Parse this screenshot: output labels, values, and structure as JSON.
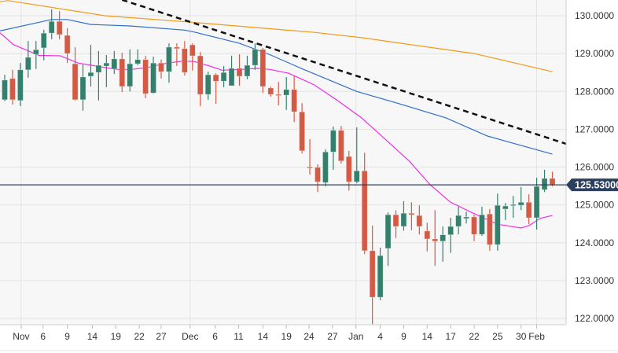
{
  "chart_data": {
    "type": "candlestick",
    "title": "",
    "ylim": [
      121.8,
      130.45
    ],
    "y_ticks": [
      "130.0000",
      "129.0000",
      "128.0000",
      "127.0000",
      "126.0000",
      "125.0000",
      "124.0000",
      "123.0000",
      "122.0000"
    ],
    "y_tick_values": [
      130,
      129,
      128,
      127,
      126,
      125,
      124,
      123,
      122
    ],
    "x_ticks": [
      {
        "label": "Nov",
        "index": 2.1
      },
      {
        "label": "6",
        "index": 4.9
      },
      {
        "label": "9",
        "index": 8
      },
      {
        "label": "14",
        "index": 11.2
      },
      {
        "label": "19",
        "index": 14.2
      },
      {
        "label": "22",
        "index": 17.2
      },
      {
        "label": "27",
        "index": 20
      },
      {
        "label": "Dec",
        "index": 23.7
      },
      {
        "label": "6",
        "index": 26.9
      },
      {
        "label": "11",
        "index": 29.9
      },
      {
        "label": "14",
        "index": 33
      },
      {
        "label": "19",
        "index": 36
      },
      {
        "label": "24",
        "index": 38.9
      },
      {
        "label": "27",
        "index": 41.9
      },
      {
        "label": "Jan",
        "index": 44.9
      },
      {
        "label": "4",
        "index": 48
      },
      {
        "label": "9",
        "index": 51
      },
      {
        "label": "14",
        "index": 54
      },
      {
        "label": "17",
        "index": 57
      },
      {
        "label": "22",
        "index": 60
      },
      {
        "label": "25",
        "index": 63
      },
      {
        "label": "30",
        "index": 66
      },
      {
        "label": "Feb",
        "index": 68
      }
    ],
    "month_gridlines": [
      2.1,
      23.7,
      44.9,
      68
    ],
    "current_price": {
      "value": 125.53,
      "label": "125.53000"
    },
    "colors": {
      "up": "#34806d",
      "down": "#d35b46",
      "ma_fast": "#ee2ee8",
      "ma_mid": "#2f6fc9",
      "ma_slow": "#f39a16",
      "trendline": "#111111",
      "price_box": "#2b3f5e",
      "grid": "#e3e3e3",
      "plot_bg": "#f7f7f7"
    },
    "candles": [
      [
        127.78,
        128.44,
        127.74,
        128.3
      ],
      [
        128.34,
        128.57,
        127.65,
        127.78
      ],
      [
        127.76,
        128.75,
        127.61,
        128.57
      ],
      [
        128.57,
        129.33,
        128.36,
        128.9
      ],
      [
        128.98,
        129.33,
        128.59,
        129.1
      ],
      [
        129.15,
        129.63,
        128.82,
        129.54
      ],
      [
        129.54,
        130.17,
        129.38,
        129.85
      ],
      [
        129.85,
        130.12,
        129.38,
        129.5
      ],
      [
        129.48,
        129.67,
        128.75,
        129.0
      ],
      [
        128.73,
        129.17,
        127.76,
        127.78
      ],
      [
        127.78,
        128.71,
        127.49,
        128.38
      ],
      [
        128.4,
        129.23,
        128.13,
        128.5
      ],
      [
        128.5,
        129.07,
        127.76,
        128.69
      ],
      [
        128.67,
        128.96,
        128.11,
        128.75
      ],
      [
        128.59,
        129.07,
        128.46,
        128.86
      ],
      [
        128.86,
        129.02,
        127.98,
        128.13
      ],
      [
        128.13,
        129.11,
        128.0,
        128.73
      ],
      [
        128.73,
        129.11,
        128.69,
        128.84
      ],
      [
        128.84,
        128.94,
        127.82,
        127.94
      ],
      [
        127.96,
        128.92,
        127.94,
        128.75
      ],
      [
        128.75,
        128.84,
        128.34,
        128.52
      ],
      [
        128.52,
        129.27,
        128.23,
        129.17
      ],
      [
        129.17,
        129.27,
        128.67,
        129.13
      ],
      [
        129.13,
        129.33,
        128.42,
        128.5
      ],
      [
        129.23,
        129.27,
        128.55,
        128.94
      ],
      [
        128.94,
        129.04,
        127.61,
        127.92
      ],
      [
        127.92,
        128.52,
        127.78,
        128.44
      ],
      [
        128.44,
        128.48,
        127.67,
        128.27
      ],
      [
        128.27,
        128.67,
        128.11,
        128.5
      ],
      [
        128.15,
        128.94,
        128.15,
        128.61
      ],
      [
        128.61,
        128.98,
        128.15,
        128.4
      ],
      [
        128.4,
        128.94,
        128.32,
        128.69
      ],
      [
        128.69,
        129.27,
        128.57,
        129.11
      ],
      [
        129.11,
        129.15,
        127.96,
        128.13
      ],
      [
        128.09,
        128.13,
        127.86,
        127.92
      ],
      [
        127.92,
        128.25,
        127.63,
        127.9
      ],
      [
        127.9,
        128.38,
        127.51,
        128.05
      ],
      [
        128.05,
        128.4,
        127.19,
        127.46
      ],
      [
        127.46,
        127.69,
        126.36,
        126.43
      ],
      [
        126.0,
        126.74,
        125.8,
        125.98
      ],
      [
        125.99,
        126.07,
        125.34,
        125.61
      ],
      [
        125.59,
        126.47,
        125.49,
        126.4
      ],
      [
        126.4,
        127.07,
        125.93,
        126.97
      ],
      [
        126.97,
        127.09,
        126.09,
        126.16
      ],
      [
        126.28,
        126.43,
        125.38,
        125.61
      ],
      [
        125.61,
        127.05,
        125.57,
        125.9
      ],
      [
        125.9,
        126.38,
        123.7,
        123.79
      ],
      [
        123.79,
        124.45,
        121.85,
        122.56
      ],
      [
        122.56,
        123.87,
        122.48,
        123.66
      ],
      [
        123.85,
        124.8,
        123.39,
        124.74
      ],
      [
        124.74,
        124.86,
        124.12,
        124.43
      ],
      [
        124.43,
        125.1,
        124.32,
        124.78
      ],
      [
        124.78,
        125.07,
        124.33,
        124.74
      ],
      [
        124.72,
        124.99,
        124.22,
        124.43
      ],
      [
        124.31,
        124.53,
        123.77,
        124.1
      ],
      [
        124.1,
        124.86,
        123.39,
        124.04
      ],
      [
        124.04,
        124.43,
        123.5,
        124.21
      ],
      [
        124.21,
        124.66,
        123.73,
        124.43
      ],
      [
        124.43,
        124.95,
        124.22,
        124.72
      ],
      [
        124.64,
        124.82,
        124.51,
        124.68
      ],
      [
        124.68,
        124.74,
        124.04,
        124.22
      ],
      [
        124.22,
        124.95,
        124.18,
        124.74
      ],
      [
        124.76,
        124.89,
        123.79,
        123.95
      ],
      [
        123.95,
        125.3,
        123.79,
        124.99
      ],
      [
        124.89,
        125.05,
        124.6,
        124.97
      ],
      [
        124.99,
        125.24,
        124.66,
        125.01
      ],
      [
        124.99,
        125.47,
        124.86,
        125.07
      ],
      [
        125.07,
        125.28,
        124.49,
        124.66
      ],
      [
        124.66,
        125.72,
        124.35,
        125.49
      ],
      [
        125.4,
        125.93,
        125.34,
        125.7
      ],
      [
        125.7,
        125.88,
        125.49,
        125.53
      ]
    ],
    "candle_fields": [
      "open",
      "high",
      "low",
      "close"
    ],
    "series": [
      {
        "name": "ma_fast",
        "color_key": "ma_fast",
        "points": [
          [
            -0.6,
            129.55
          ],
          [
            1.1,
            129.24
          ],
          [
            4.4,
            128.95
          ],
          [
            7.1,
            128.94
          ],
          [
            9.4,
            128.75
          ],
          [
            12.8,
            128.63
          ],
          [
            14.5,
            128.58
          ],
          [
            16.2,
            128.58
          ],
          [
            18.2,
            128.63
          ],
          [
            20.8,
            128.75
          ],
          [
            22.8,
            128.8
          ],
          [
            24.2,
            128.79
          ],
          [
            26.2,
            128.67
          ],
          [
            27.8,
            128.56
          ],
          [
            30.3,
            128.58
          ],
          [
            32.3,
            128.61
          ],
          [
            33.9,
            128.58
          ],
          [
            36.3,
            128.48
          ],
          [
            39.6,
            128.17
          ],
          [
            42.6,
            127.75
          ],
          [
            45.6,
            127.3
          ],
          [
            47.3,
            126.99
          ],
          [
            51.7,
            126.16
          ],
          [
            54.4,
            125.53
          ],
          [
            57,
            125.07
          ],
          [
            59.7,
            124.8
          ],
          [
            63,
            124.49
          ],
          [
            66,
            124.39
          ],
          [
            67,
            124.45
          ],
          [
            68.4,
            124.64
          ],
          [
            70,
            124.72
          ]
        ]
      },
      {
        "name": "ma_mid",
        "color_key": "ma_mid",
        "points": [
          [
            -0.6,
            129.6
          ],
          [
            6,
            129.9
          ],
          [
            8,
            129.9
          ],
          [
            11,
            129.77
          ],
          [
            16,
            129.73
          ],
          [
            23,
            129.62
          ],
          [
            24,
            129.58
          ],
          [
            30,
            129.27
          ],
          [
            34,
            128.96
          ],
          [
            38,
            128.6
          ],
          [
            45,
            128.0
          ],
          [
            50,
            127.7
          ],
          [
            56.4,
            127.3
          ],
          [
            61.7,
            126.82
          ],
          [
            70,
            126.34
          ]
        ]
      },
      {
        "name": "ma_slow",
        "color_key": "ma_slow",
        "points": [
          [
            -0.6,
            130.37
          ],
          [
            0.4,
            130.4
          ],
          [
            12.8,
            130.0
          ],
          [
            23.8,
            129.83
          ],
          [
            39.6,
            129.56
          ],
          [
            45.6,
            129.42
          ],
          [
            60,
            129.0
          ],
          [
            70,
            128.52
          ]
        ]
      },
      {
        "name": "trendline",
        "color_key": "trendline",
        "dashed": true,
        "points": [
          [
            15,
            130.42
          ],
          [
            71.8,
            126.61
          ]
        ]
      }
    ]
  }
}
